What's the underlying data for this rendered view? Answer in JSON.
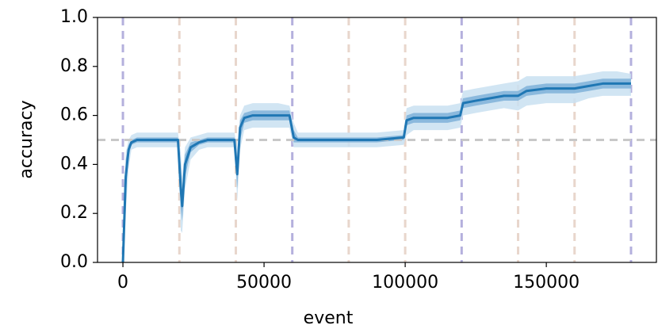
{
  "chart_data": {
    "type": "line",
    "xlabel": "event",
    "ylabel": "accuracy",
    "xlim": [
      -9000,
      189000
    ],
    "ylim": [
      0,
      1
    ],
    "xticks": [
      0,
      50000,
      100000,
      150000
    ],
    "yticks": [
      {
        "value": 0,
        "label": "0.0"
      },
      0.2,
      0.4,
      0.6,
      0.8,
      {
        "value": 1,
        "label": "1.0"
      }
    ],
    "color": "#1f77b4",
    "x": [
      0,
      1000,
      2000,
      3000,
      5000,
      10000,
      15000,
      19500,
      20500,
      21000,
      22000,
      24000,
      27000,
      30000,
      35000,
      39500,
      40500,
      41500,
      43000,
      46000,
      50000,
      55000,
      59000,
      60500,
      62000,
      70000,
      80000,
      90000,
      99500,
      100500,
      103000,
      110000,
      115000,
      119500,
      120500,
      125000,
      130000,
      135000,
      140000,
      143000,
      150000,
      155000,
      160000,
      165000,
      170000,
      175000,
      180000
    ],
    "mean": [
      0,
      0.35,
      0.46,
      0.49,
      0.5,
      0.5,
      0.5,
      0.5,
      0.3,
      0.23,
      0.4,
      0.47,
      0.49,
      0.5,
      0.5,
      0.5,
      0.36,
      0.55,
      0.59,
      0.6,
      0.6,
      0.6,
      0.6,
      0.51,
      0.5,
      0.5,
      0.5,
      0.5,
      0.51,
      0.58,
      0.59,
      0.59,
      0.59,
      0.6,
      0.65,
      0.66,
      0.67,
      0.68,
      0.68,
      0.7,
      0.71,
      0.71,
      0.71,
      0.72,
      0.73,
      0.73,
      0.73
    ],
    "inner_band": {
      "color": "#7fb2d8",
      "lower": [
        0,
        0.28,
        0.43,
        0.48,
        0.49,
        0.49,
        0.49,
        0.49,
        0.22,
        0.17,
        0.35,
        0.45,
        0.48,
        0.49,
        0.49,
        0.49,
        0.3,
        0.5,
        0.57,
        0.58,
        0.58,
        0.58,
        0.58,
        0.49,
        0.49,
        0.49,
        0.49,
        0.49,
        0.5,
        0.56,
        0.57,
        0.57,
        0.57,
        0.58,
        0.63,
        0.64,
        0.65,
        0.66,
        0.66,
        0.68,
        0.69,
        0.69,
        0.69,
        0.7,
        0.71,
        0.71,
        0.71
      ],
      "upper": [
        0.02,
        0.42,
        0.48,
        0.5,
        0.51,
        0.51,
        0.51,
        0.51,
        0.4,
        0.3,
        0.44,
        0.49,
        0.5,
        0.51,
        0.51,
        0.51,
        0.42,
        0.58,
        0.61,
        0.62,
        0.62,
        0.62,
        0.62,
        0.54,
        0.51,
        0.51,
        0.51,
        0.51,
        0.52,
        0.6,
        0.61,
        0.61,
        0.61,
        0.62,
        0.67,
        0.68,
        0.69,
        0.7,
        0.7,
        0.72,
        0.73,
        0.73,
        0.73,
        0.74,
        0.75,
        0.75,
        0.75
      ]
    },
    "outer_band": {
      "color": "#c9e0f1",
      "lower": [
        0,
        0.2,
        0.38,
        0.46,
        0.47,
        0.47,
        0.47,
        0.47,
        0.13,
        0.12,
        0.3,
        0.42,
        0.46,
        0.47,
        0.47,
        0.47,
        0.25,
        0.46,
        0.54,
        0.55,
        0.55,
        0.55,
        0.55,
        0.47,
        0.47,
        0.47,
        0.47,
        0.47,
        0.48,
        0.52,
        0.54,
        0.54,
        0.54,
        0.55,
        0.6,
        0.61,
        0.62,
        0.63,
        0.62,
        0.64,
        0.65,
        0.65,
        0.65,
        0.67,
        0.68,
        0.68,
        0.68
      ],
      "upper": [
        0.05,
        0.45,
        0.5,
        0.52,
        0.53,
        0.53,
        0.53,
        0.53,
        0.45,
        0.35,
        0.47,
        0.51,
        0.52,
        0.53,
        0.53,
        0.53,
        0.47,
        0.6,
        0.64,
        0.65,
        0.65,
        0.65,
        0.64,
        0.57,
        0.53,
        0.53,
        0.53,
        0.53,
        0.54,
        0.63,
        0.64,
        0.64,
        0.64,
        0.65,
        0.7,
        0.71,
        0.72,
        0.73,
        0.74,
        0.76,
        0.76,
        0.76,
        0.76,
        0.77,
        0.78,
        0.78,
        0.77
      ]
    },
    "hline": {
      "y": 0.5,
      "color": "#c8c8c8"
    },
    "vlines": {
      "x": [
        0,
        20000,
        40000,
        60000,
        80000,
        100000,
        120000,
        140000,
        160000,
        180000
      ],
      "colors": [
        "#b4b0dd",
        "#e8d6cc",
        "#e8d6cc",
        "#b4b0dd",
        "#e8d6cc",
        "#e8d6cc",
        "#b4b0dd",
        "#e8d6cc",
        "#e8d6cc",
        "#b4b0dd"
      ]
    }
  }
}
